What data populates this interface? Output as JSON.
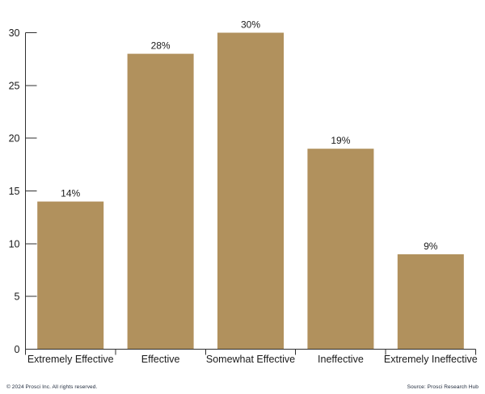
{
  "chart_data": {
    "type": "bar",
    "categories": [
      "Extremely Effective",
      "Effective",
      "Somewhat Effective",
      "Ineffective",
      "Extremely Ineffective"
    ],
    "values": [
      14,
      28,
      30,
      19,
      9
    ],
    "value_labels": [
      "14%",
      "28%",
      "30%",
      "19%",
      "9%"
    ],
    "title": "",
    "xlabel": "",
    "ylabel": "",
    "ylim": [
      0,
      30
    ],
    "yticks": [
      0,
      5,
      10,
      15,
      20,
      25,
      30
    ],
    "grid": false,
    "legend": false,
    "bar_color": "#b1915d",
    "axis_color": "#2f2f2f",
    "label_color": "#1a1a1a"
  },
  "footer": {
    "copyright": "© 2024 Prosci Inc. All rights reserved.",
    "source": "Source: Prosci Research Hub",
    "text_color": "#1b2638"
  }
}
